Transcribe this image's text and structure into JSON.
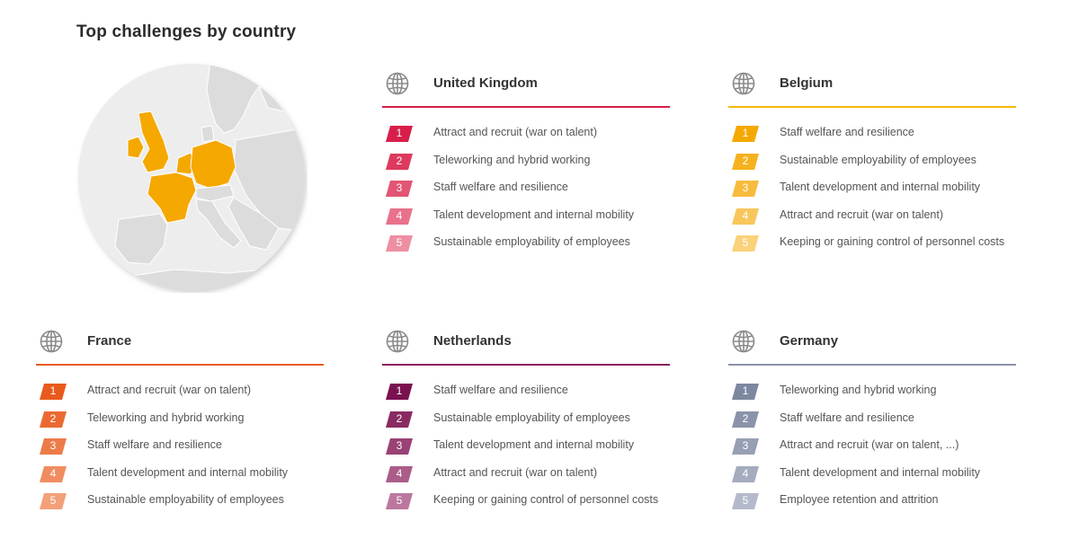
{
  "title": "Top challenges by country",
  "colors": {
    "highlight": "#f5a800",
    "land": "#dcdcdc",
    "sea": "#ededed"
  },
  "countries": [
    {
      "name": "United Kingdom",
      "color": "#d81e4a",
      "icon": "globe-icon",
      "challenges": [
        {
          "rank": "1",
          "label": "Attract and recruit (war on talent)",
          "color": "#d81e4a"
        },
        {
          "rank": "2",
          "label": "Teleworking and hybrid working",
          "color": "#dd3a5e"
        },
        {
          "rank": "3",
          "label": "Staff welfare and resilience",
          "color": "#e25574"
        },
        {
          "rank": "4",
          "label": "Talent development and internal mobility",
          "color": "#e8728b"
        },
        {
          "rank": "5",
          "label": "Sustainable employability of employees",
          "color": "#ee8fa3"
        }
      ]
    },
    {
      "name": "Belgium",
      "color": "#f5b800",
      "icon": "globe-icon",
      "challenges": [
        {
          "rank": "1",
          "label": "Staff welfare and resilience",
          "color": "#f5a800"
        },
        {
          "rank": "2",
          "label": "Sustainable employability of employees",
          "color": "#f6b11f"
        },
        {
          "rank": "3",
          "label": "Talent development and internal mobility",
          "color": "#f7bb3d"
        },
        {
          "rank": "4",
          "label": "Attract and recruit (war on talent)",
          "color": "#f8c75c"
        },
        {
          "rank": "5",
          "label": "Keeping or gaining control of personnel costs",
          "color": "#f9d27a"
        }
      ]
    },
    {
      "name": "France",
      "color": "#e85a1e",
      "icon": "globe-icon",
      "challenges": [
        {
          "rank": "1",
          "label": "Attract and recruit (war on talent)",
          "color": "#e85a1e"
        },
        {
          "rank": "2",
          "label": "Teleworking and hybrid working",
          "color": "#eb6a32"
        },
        {
          "rank": "3",
          "label": "Staff welfare and resilience",
          "color": "#ed7b48"
        },
        {
          "rank": "4",
          "label": "Talent development and internal mobility",
          "color": "#f08d60"
        },
        {
          "rank": "5",
          "label": "Sustainable employability of employees",
          "color": "#f3a079"
        }
      ]
    },
    {
      "name": "Netherlands",
      "color": "#8b1a5e",
      "icon": "globe-icon",
      "challenges": [
        {
          "rank": "1",
          "label": "Staff welfare and resilience",
          "color": "#7a1250"
        },
        {
          "rank": "2",
          "label": "Sustainable employability of employees",
          "color": "#8a2a62"
        },
        {
          "rank": "3",
          "label": "Talent development and internal mobility",
          "color": "#9a4275"
        },
        {
          "rank": "4",
          "label": "Attract and recruit (war on talent)",
          "color": "#ab5c89"
        },
        {
          "rank": "5",
          "label": "Keeping or gaining control of personnel costs",
          "color": "#bc779e"
        }
      ]
    },
    {
      "name": "Germany",
      "color": "#8a93ab",
      "icon": "globe-icon",
      "challenges": [
        {
          "rank": "1",
          "label": "Teleworking and hybrid working",
          "color": "#7d879f"
        },
        {
          "rank": "2",
          "label": "Staff welfare and resilience",
          "color": "#8a93a9"
        },
        {
          "rank": "3",
          "label": "Attract and recruit (war on talent, ...)",
          "color": "#979fb4"
        },
        {
          "rank": "4",
          "label": "Talent development and internal mobility",
          "color": "#a5acbf"
        },
        {
          "rank": "5",
          "label": "Employee retention and attrition",
          "color": "#b4bacb"
        }
      ]
    }
  ]
}
